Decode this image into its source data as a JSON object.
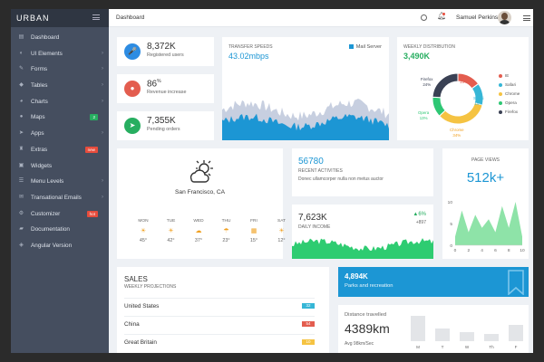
{
  "brand": "URBAN",
  "sidebar": {
    "items": [
      {
        "label": "Dashboard",
        "icon": "dashboard-icon",
        "glyph": "▤"
      },
      {
        "label": "UI Elements",
        "icon": "layers-icon",
        "glyph": "◐",
        "chevron": "›"
      },
      {
        "label": "Forms",
        "icon": "pencil-icon",
        "glyph": "✎",
        "chevron": "›"
      },
      {
        "label": "Tables",
        "icon": "tag-icon",
        "glyph": "◆",
        "chevron": "›"
      },
      {
        "label": "Charts",
        "icon": "pie-chart-icon",
        "glyph": "◕",
        "chevron": "›"
      },
      {
        "label": "Maps",
        "icon": "map-marker-icon",
        "glyph": "●",
        "badge": "2",
        "badge_color": "#27ae60"
      },
      {
        "label": "Apps",
        "icon": "send-icon",
        "glyph": "➤",
        "chevron": "›"
      },
      {
        "label": "Extras",
        "icon": "trophy-icon",
        "glyph": "♜",
        "badge": "new",
        "badge_color": "#e74c3c"
      },
      {
        "label": "Widgets",
        "icon": "cube-icon",
        "glyph": "▣"
      },
      {
        "label": "Menu Levels",
        "icon": "list-icon",
        "glyph": "☰",
        "chevron": "›"
      },
      {
        "label": "Transational Emails",
        "icon": "envelope-icon",
        "glyph": "✉",
        "chevron": "›"
      },
      {
        "label": "Customizer",
        "icon": "sliders-icon",
        "glyph": "⚙",
        "badge": "hot",
        "badge_color": "#e74c3c"
      },
      {
        "label": "Documentation",
        "icon": "folder-icon",
        "glyph": "▰"
      },
      {
        "label": "Angular Version",
        "icon": "angular-icon",
        "glyph": "◈"
      }
    ]
  },
  "topbar": {
    "breadcrumb": "Dashboard",
    "user_name": "Samuel Perkins"
  },
  "stats": [
    {
      "value": "8,372K",
      "label": "Registered users",
      "color": "#2d8ce2",
      "icon": "microphone-icon",
      "glyph": "🎤"
    },
    {
      "value": "86",
      "sup": "%",
      "label": "Revenue increase",
      "color": "#e35d4f",
      "icon": "water-drop-icon",
      "glyph": "●"
    },
    {
      "value": "7,355K",
      "label": "Pending orders",
      "color": "#27ae60",
      "icon": "paper-plane-icon",
      "glyph": "➤"
    }
  ],
  "transfer": {
    "caption": "TRANSFER SPEEDS",
    "value": "43.02mbps",
    "legend": "Mail Server",
    "colors": {
      "front": "#1c96d4",
      "back": "#c7cfe0"
    }
  },
  "weekly": {
    "caption": "WEEKLY DISTRIBUTION",
    "value": "3,490K",
    "chart_data": {
      "type": "pie",
      "slices": [
        {
          "name": "IE",
          "value": 15,
          "color": "#e35d4f"
        },
        {
          "name": "Safari",
          "value": 14,
          "color": "#36b6d6"
        },
        {
          "name": "Chrome",
          "value": 34,
          "color": "#f5c342"
        },
        {
          "name": "Opera",
          "value": 13,
          "color": "#2ec774"
        },
        {
          "name": "Firefox",
          "value": 24,
          "color": "#3a4154"
        }
      ],
      "labels": [
        {
          "name": "Firefox",
          "pct": "24%"
        },
        {
          "name": "IE",
          "pct": "15%"
        },
        {
          "name": "Safari",
          "pct": "14%"
        },
        {
          "name": "Opera",
          "pct": "13%"
        },
        {
          "name": "Chrome",
          "pct": "34%"
        }
      ]
    }
  },
  "weather": {
    "city": "San Francisco, CA",
    "days": [
      {
        "day": "MON",
        "temp": "45°",
        "glyph": "☀"
      },
      {
        "day": "TUE",
        "temp": "42°",
        "glyph": "☀"
      },
      {
        "day": "WED",
        "temp": "37°",
        "glyph": "☁"
      },
      {
        "day": "THU",
        "temp": "23°",
        "glyph": "☂"
      },
      {
        "day": "FRI",
        "temp": "15°",
        "glyph": "▦"
      },
      {
        "day": "SAT",
        "temp": "12°",
        "glyph": "☀"
      }
    ]
  },
  "activities": {
    "value": "56780",
    "caption": "RECENT ACTIVITIES",
    "text": "Donec ullamcorper nulla non metus auctor"
  },
  "income": {
    "value": "7,623K",
    "caption": "DAILY INCOME",
    "change": "▲6%",
    "delta": "+897",
    "color": "#2ecc71"
  },
  "pageviews": {
    "caption": "PAGE VIEWS",
    "value": "512k+",
    "chart_data": {
      "type": "area",
      "x": [
        0,
        1,
        2,
        3,
        4,
        5,
        6,
        7,
        8,
        9,
        10
      ],
      "series": [
        {
          "values": [
            2,
            8,
            3,
            7,
            4,
            6,
            3,
            9,
            4,
            10,
            2
          ]
        }
      ],
      "xticks": [
        "0",
        "2",
        "4",
        "6",
        "8",
        "10"
      ],
      "yticks": [
        "0",
        "5",
        "10"
      ],
      "xlim": [
        0,
        10
      ],
      "ylim": [
        0,
        10
      ],
      "color": "#8ee3a8"
    }
  },
  "sales": {
    "title": "SALES",
    "subtitle": "WEEKLY PROJECTIONS",
    "rows": [
      {
        "country": "United States",
        "value": "32",
        "color": "#36b6d6"
      },
      {
        "country": "China",
        "value": "54",
        "color": "#e35d4f"
      },
      {
        "country": "Great Britain",
        "value": "10",
        "color": "#f5c342"
      }
    ]
  },
  "parks": {
    "value": "4,894K",
    "caption": "Parks and recreation",
    "color": "#1c96d4",
    "icon": "bookmark-icon"
  },
  "distance": {
    "caption": "Distance travelled",
    "value": "4389km",
    "avg": "Avg 98km/Sec",
    "chart_data": {
      "type": "bar",
      "categories": [
        "M",
        "T",
        "W",
        "Th",
        "F"
      ],
      "values": [
        28,
        14,
        10,
        8,
        18
      ],
      "ylim": [
        0,
        30
      ]
    }
  }
}
